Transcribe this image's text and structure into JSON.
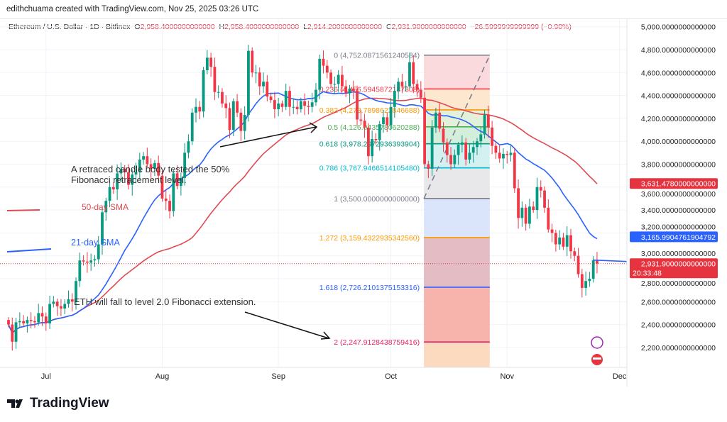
{
  "credit": "edithchuama created with TradingView.com, Nov 25, 2025 03:26 UTC",
  "legend": {
    "symbol": "Ethereum / U.S. Dollar · 1D · Bitfinex",
    "o_label": "O",
    "o": "2,958.4000000000000",
    "h_label": "H",
    "h": "2,958.4000000000000",
    "l_label": "L",
    "l": "2,914.2000000000000",
    "c_label": "C",
    "c": "2,931.9000000000000",
    "change": "−26.5999999999999 (−0.90%)"
  },
  "footer": {
    "brand": "TradingView"
  },
  "colors": {
    "up": "#089981",
    "down": "#f23645",
    "sma21": "#2962ff",
    "sma50": "#e04a52",
    "grid": "#f0f3fa"
  },
  "chart_data": {
    "type": "candlestick",
    "start_date": "2025-06-21",
    "interval": "1D",
    "ylim": [
      2100,
      5050
    ],
    "y_ticks": [
      "5,000.0000000000000",
      "4,800.0000000000000",
      "4,600.0000000000000",
      "4,400.0000000000000",
      "4,200.0000000000000",
      "4,000.0000000000000",
      "3,800.0000000000000",
      "3,600.0000000000000",
      "3,400.0000000000000",
      "3,200.0000000000000",
      "3,000.0000000000000",
      "2,800.0000000000000",
      "2,600.0000000000000",
      "2,400.0000000000000",
      "2,200.0000000000000"
    ],
    "x_ticks": [
      {
        "label": "Jul",
        "date": "2025-07-01"
      },
      {
        "label": "Aug",
        "date": "2025-08-01"
      },
      {
        "label": "Sep",
        "date": "2025-09-01"
      },
      {
        "label": "Oct",
        "date": "2025-10-01"
      },
      {
        "label": "Nov",
        "date": "2025-11-01"
      },
      {
        "label": "Dec",
        "date": "2025-12-01"
      }
    ],
    "closes": [
      2400,
      2250,
      2420,
      2430,
      2410,
      2440,
      2430,
      2420,
      2500,
      2470,
      2410,
      2580,
      2600,
      2560,
      2540,
      2580,
      2620,
      2600,
      2780,
      2960,
      2950,
      2940,
      2960,
      2970,
      3100,
      3380,
      3480,
      3600,
      3580,
      3720,
      3760,
      3730,
      3620,
      3710,
      3730,
      3840,
      3870,
      3800,
      3760,
      3810,
      3700,
      3500,
      3480,
      3390,
      3720,
      3610,
      3680,
      3900,
      4000,
      4250,
      4300,
      4260,
      4620,
      4730,
      4650,
      4430,
      4430,
      4330,
      4290,
      4100,
      4350,
      4250,
      4090,
      4230,
      4790,
      4600,
      4600,
      4480,
      4520,
      4390,
      4360,
      4280,
      4330,
      4300,
      4440,
      4300,
      4300,
      4280,
      4350,
      4310,
      4300,
      4340,
      4450,
      4720,
      4660,
      4600,
      4500,
      4500,
      4580,
      4480,
      4420,
      4460,
      4440,
      4190,
      4180,
      4120,
      3870,
      4020,
      4010,
      4150,
      4210,
      4140,
      4300,
      4440,
      4520,
      4480,
      4480,
      4690,
      4500,
      4450,
      4380,
      3800,
      3760,
      4120,
      4250,
      4110,
      3990,
      3880,
      3800,
      3880,
      3970,
      3990,
      3840,
      3900,
      3950,
      4000,
      4060,
      4230,
      4120,
      3960,
      3900,
      3850,
      3890,
      3880,
      3900,
      3590,
      3330,
      3420,
      3280,
      3430,
      3400,
      3600,
      3570,
      3420,
      3230,
      3200,
      3100,
      3160,
      3080,
      3180,
      3040,
      3000,
      2840,
      2720,
      2780,
      2800,
      2960,
      2931.9
    ],
    "series": [
      {
        "name": "21-day SMA",
        "last": "3,165.9904761904792"
      },
      {
        "name": "50-day SMA",
        "last": "3,631.4780000000000"
      }
    ],
    "last_price": "2,931.9000000000000",
    "countdown": "20:33:48",
    "fibonacci": {
      "from_date": "2025-10-10",
      "to_date": "2025-10-27",
      "high": 4752.087156124058,
      "low": 3500,
      "levels": [
        {
          "ratio": "0",
          "label": "0 (4,752.0871561240584)",
          "color": "#787b86",
          "fill": "#f9d4d6"
        },
        {
          "ratio": "0.236",
          "label": "0.236 (4,456.5945872187808)",
          "color": "#f23645",
          "fill": "#fde3c6"
        },
        {
          "ratio": "0.382",
          "label": "0.382 (4,273.7898622846688)",
          "color": "#ff9800",
          "fill": "#dcefd4"
        },
        {
          "ratio": "0.5",
          "label": "0.5 (4,126.0435780620288)",
          "color": "#4caf50",
          "fill": "#cdebd6"
        },
        {
          "ratio": "0.618",
          "label": "0.618 (3,978.2972936393904)",
          "color": "#089981",
          "fill": "#cdeef0"
        },
        {
          "ratio": "0.786",
          "label": "0.786 (3,767.9466514105480)",
          "color": "#00bcd4",
          "fill": "#e4e4e6"
        },
        {
          "ratio": "1",
          "label": "1 (3,500.0000000000000)",
          "color": "#787b86",
          "fill": "#d4e0fb"
        },
        {
          "ratio": "1.272",
          "label": "1.272 (3,159.4322935342560)",
          "color": "#ff9800",
          "fill": "#dfb2ba"
        },
        {
          "ratio": "1.618",
          "label": "1.618 (2,726.2101375153316)",
          "color": "#2962ff",
          "fill": "#f4a79f"
        },
        {
          "ratio": "2",
          "label": "2 (2,247.9128438759416)",
          "color": "#e91e63",
          "fill": "#fbd3b5"
        }
      ]
    },
    "annotations": [
      {
        "text_lines": [
          "A retraced candle body tested the 50%",
          "Fibonacci retracement level."
        ]
      },
      {
        "text_lines": [
          "ETH  will fall to level 2.0 Fibonacci extension."
        ]
      }
    ],
    "legend_labels": [
      "50-day SMA",
      "21-day SMA"
    ]
  }
}
